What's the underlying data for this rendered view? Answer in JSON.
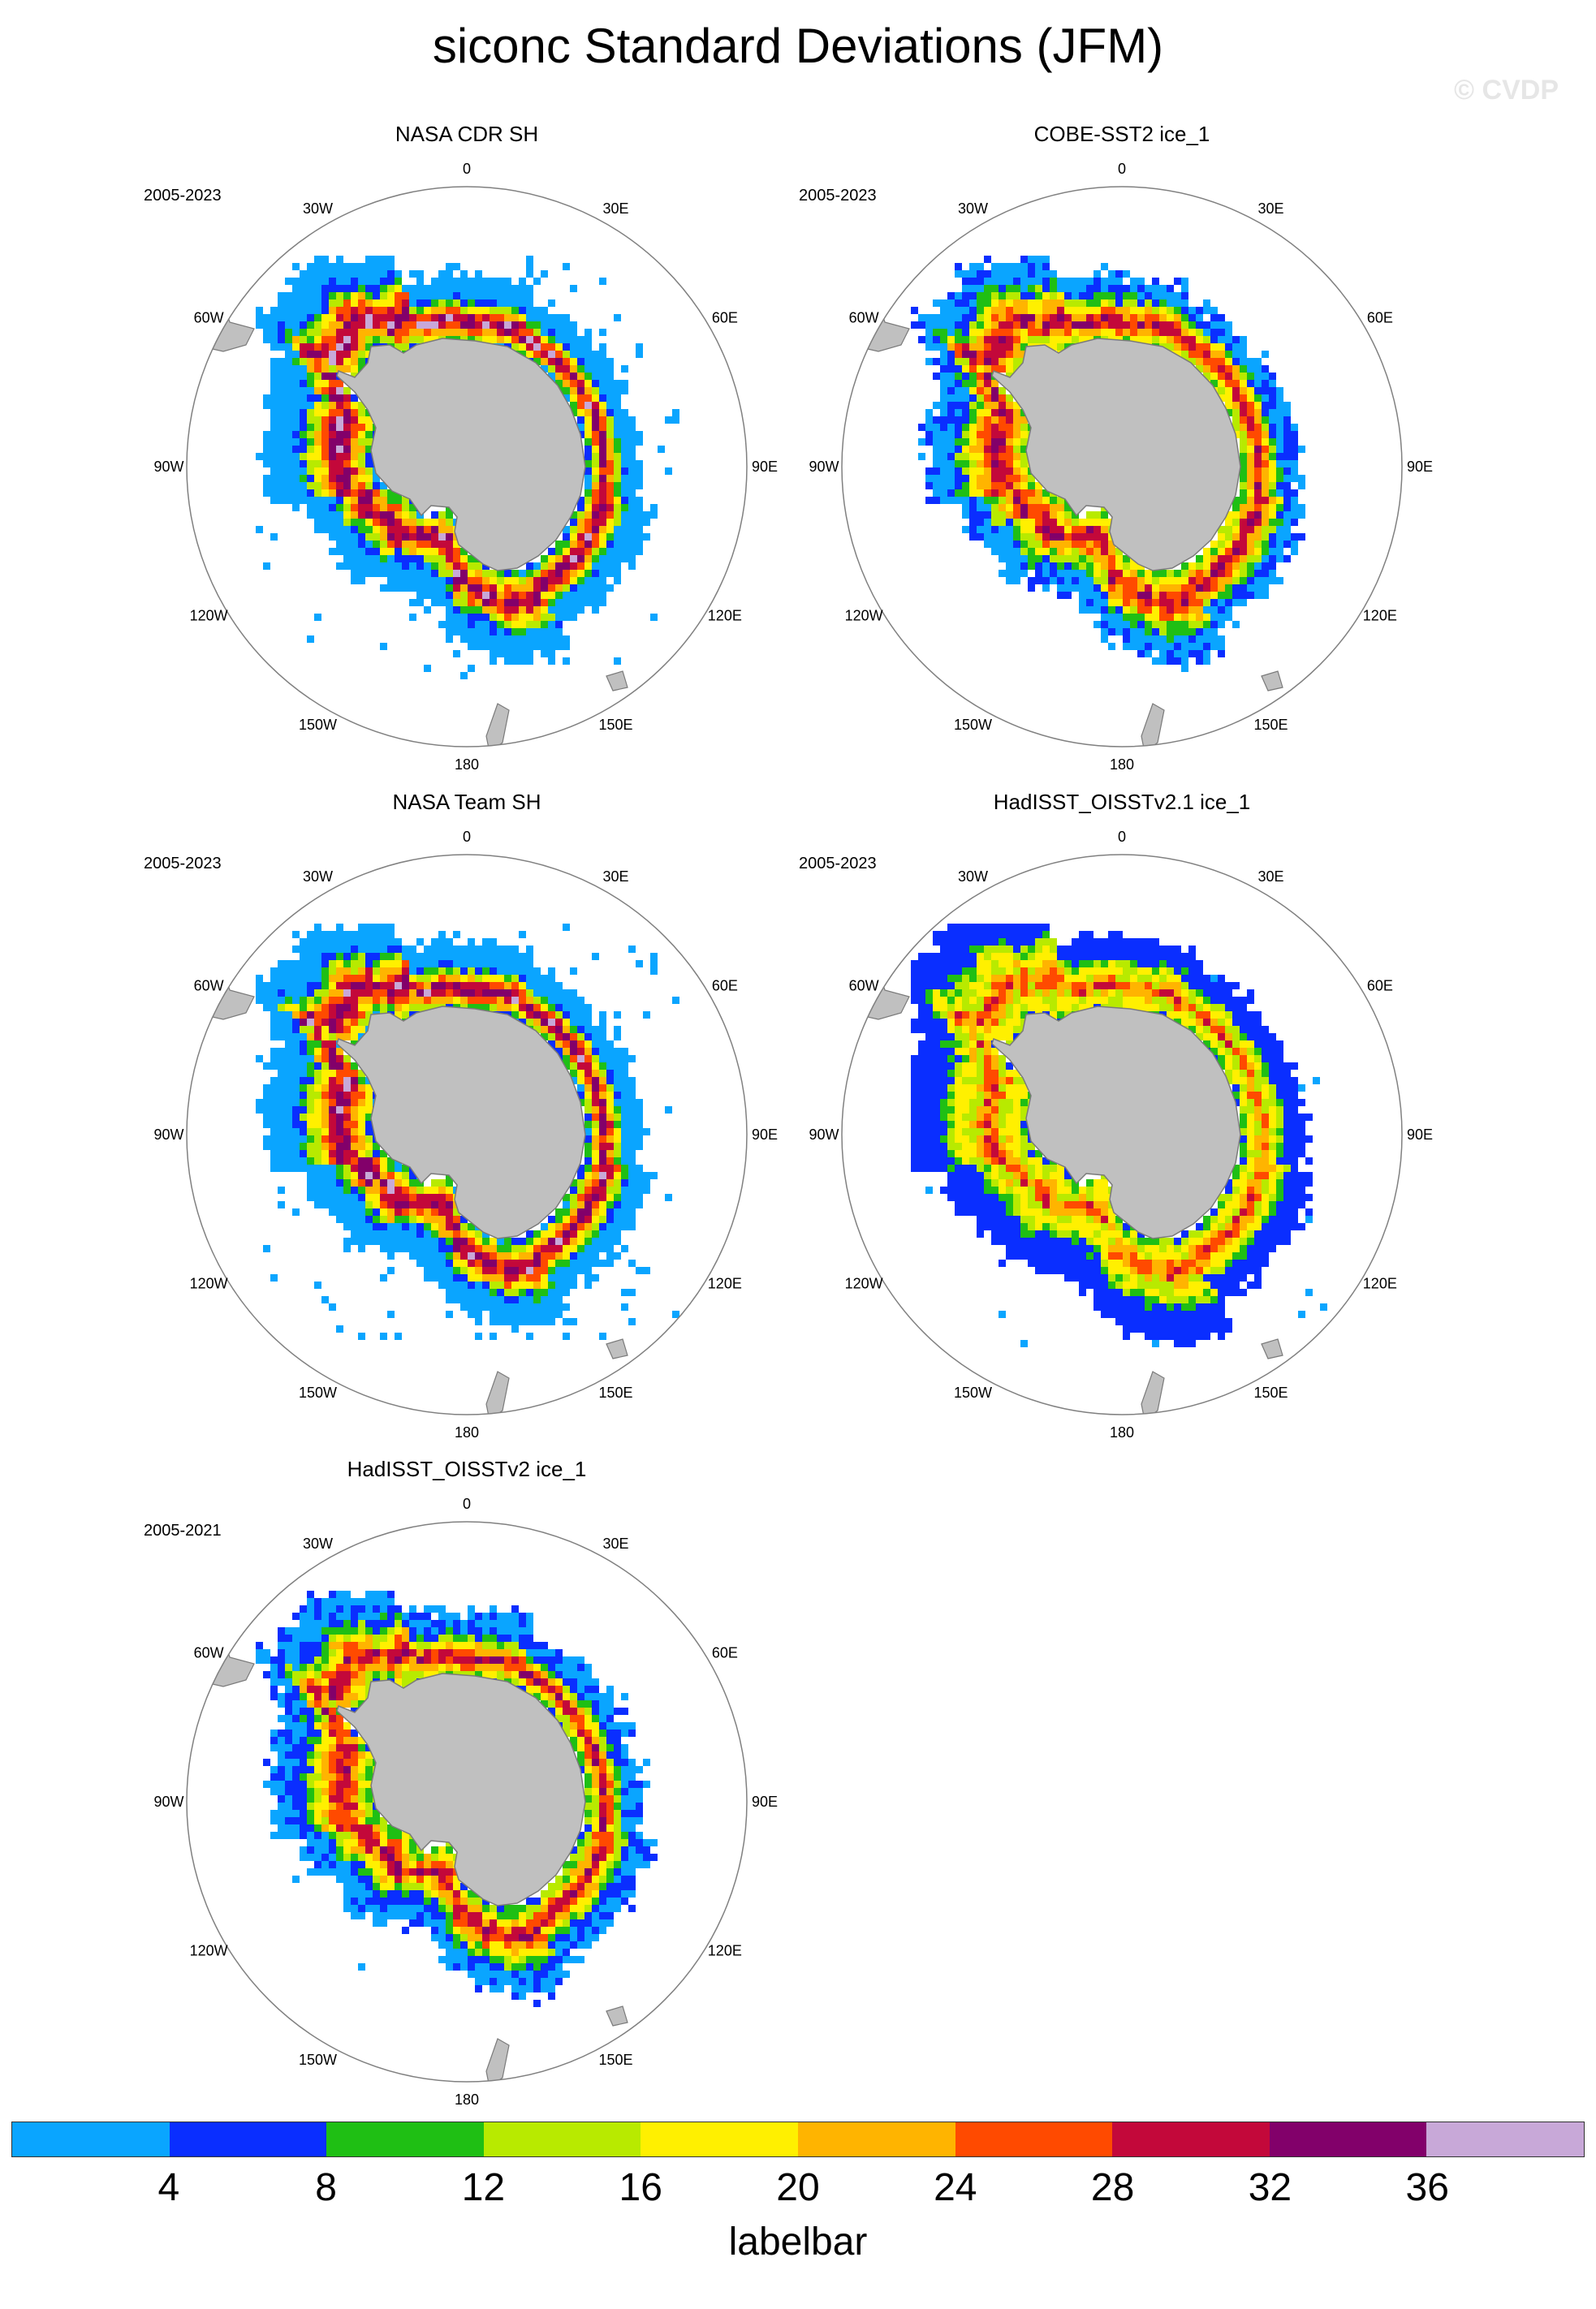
{
  "figure": {
    "title": "siconc Standard Deviations (JFM)",
    "watermark": "© CVDP"
  },
  "longitude_labels": [
    "0",
    "30E",
    "60E",
    "90E",
    "120E",
    "150E",
    "180",
    "150W",
    "120W",
    "90W",
    "60W",
    "30W"
  ],
  "panels": [
    {
      "title": "NASA CDR SH",
      "period": "2005-2023",
      "pattern": "cdr"
    },
    {
      "title": "COBE-SST2 ice_1",
      "period": "2005-2023",
      "pattern": "cobe"
    },
    {
      "title": "NASA Team SH",
      "period": "2005-2023",
      "pattern": "team"
    },
    {
      "title": "HadISST_OISSTv2.1 ice_1",
      "period": "2005-2023",
      "pattern": "had21"
    },
    {
      "title": "HadISST_OISSTv2 ice_1",
      "period": "2005-2021",
      "pattern": "had2"
    }
  ],
  "colorbar": {
    "label": "labelbar",
    "ticks": [
      "4",
      "8",
      "12",
      "16",
      "20",
      "24",
      "28",
      "32",
      "36"
    ],
    "colors": [
      "#0aa5ff",
      "#0a2eff",
      "#1fbf14",
      "#b8ea00",
      "#fff000",
      "#ffb400",
      "#ff4a00",
      "#c3083a",
      "#82006a",
      "#c8a8d8"
    ]
  },
  "map_colors": {
    "land": "#c0c0c0",
    "coast": "#7a7a7a",
    "frame": "#808080"
  }
}
